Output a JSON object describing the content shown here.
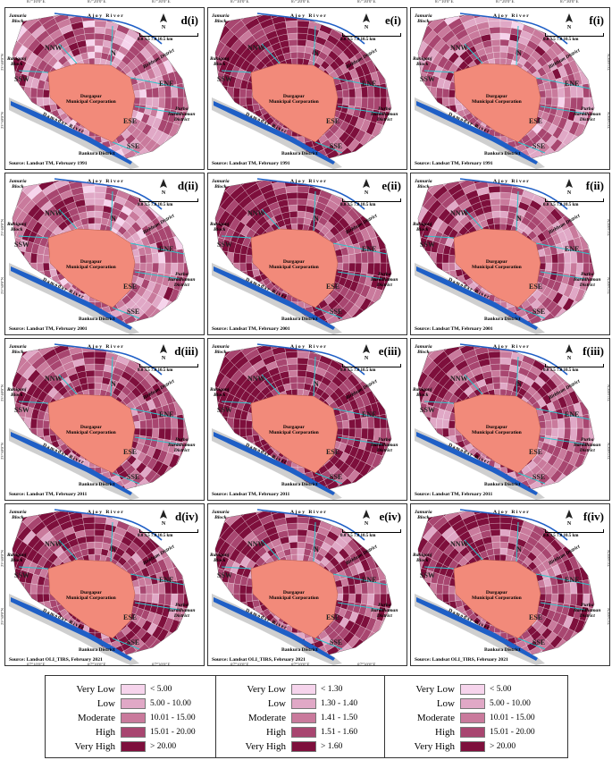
{
  "top_coords": [
    "87°10'0\"E",
    "87°20'0\"E",
    "87°30'0\"E"
  ],
  "bottom_coords": [
    "87°10'0\"E",
    "87°20'0\"E",
    "87°30'0\"E"
  ],
  "side_coords": [
    "23°40'0\"N",
    "23°30'0\"N"
  ],
  "map_text": {
    "jamuria": "Jamuria\nBlock",
    "raniganj": "Raniganj\nBlock",
    "ajoy": "Ajoy River",
    "birbhum": "Birbhum District",
    "purba": "Purba\nBarddhaman\nDistrict",
    "damodar": "Damodar River",
    "bankura": "Bankura District",
    "durgapur": "Durgapur\nMunicipal Corporation",
    "zones": [
      "NNW",
      "N",
      "SSW",
      "ENE",
      "ESE",
      "SSE"
    ],
    "scale_labels": "0.0   3.5   7.0   10.5 km",
    "north": "N"
  },
  "panels": [
    {
      "label": "d(i)",
      "source": "Source: Landsat TM, February 1991"
    },
    {
      "label": "e(i)",
      "source": "Source: Landsat TM, February 1991"
    },
    {
      "label": "f(i)",
      "source": "Source: Landsat TM, February 1991"
    },
    {
      "label": "d(ii)",
      "source": "Source: Landsat TM, February 2001"
    },
    {
      "label": "e(ii)",
      "source": "Source: Landsat TM, February 2001"
    },
    {
      "label": "f(ii)",
      "source": "Source: Landsat TM, February 2001"
    },
    {
      "label": "d(iii)",
      "source": "Source: Landsat TM, February 2011"
    },
    {
      "label": "e(iii)",
      "source": "Source: Landsat TM, February 2011"
    },
    {
      "label": "f(iii)",
      "source": "Source: Landsat TM, February 2011"
    },
    {
      "label": "d(iv)",
      "source": "Source: Landsat OLI_TIRS, February 2021"
    },
    {
      "label": "e(iv)",
      "source": "Source: Landsat OLI_TIRS, February 2021"
    },
    {
      "label": "f(iv)",
      "source": "Source: Landsat OLI_TIRS, February 2021"
    }
  ],
  "panel_intensity": [
    0.25,
    0.7,
    0.3,
    0.3,
    0.75,
    0.4,
    0.5,
    0.8,
    0.45,
    0.6,
    0.55,
    0.55
  ],
  "legend_colors": [
    "#f6d4ec",
    "#e0a8c6",
    "#c97a9c",
    "#a84670",
    "#7e0f3c"
  ],
  "legends": [
    {
      "classes": [
        "Very Low",
        "Low",
        "Moderate",
        "High",
        "Very High"
      ],
      "ranges": [
        "< 5.00",
        "5.00 - 10.00",
        "10.01 - 15.00",
        "15.01 - 20.00",
        "> 20.00"
      ]
    },
    {
      "classes": [
        "Very Low",
        "Low",
        "Moderate",
        "High",
        "Very High"
      ],
      "ranges": [
        "< 1.30",
        "1.30 - 1.40",
        "1.41 - 1.50",
        "1.51 - 1.60",
        "> 1.60"
      ]
    },
    {
      "classes": [
        "Very Low",
        "Low",
        "Moderate",
        "High",
        "Very High"
      ],
      "ranges": [
        "< 5.00",
        "5.00 - 10.00",
        "10.01 - 15.00",
        "15.01 - 20.00",
        "> 20.00"
      ]
    }
  ]
}
